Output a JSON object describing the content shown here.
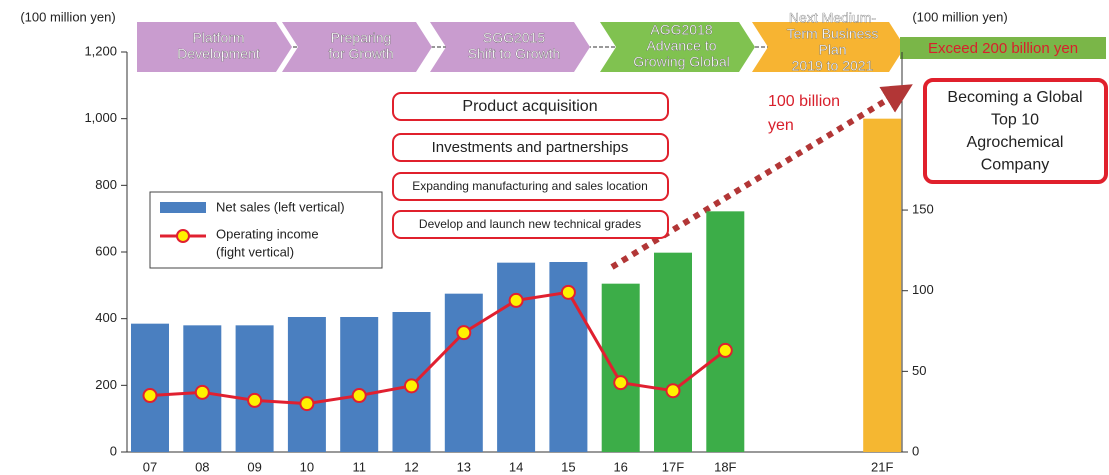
{
  "chart_data": {
    "type": "bar",
    "categories": [
      "07",
      "08",
      "09",
      "10",
      "11",
      "12",
      "13",
      "14",
      "15",
      "16",
      "17F",
      "18F",
      null,
      null,
      "21F"
    ],
    "series": [
      {
        "name": "Net sales (left vertical)",
        "type": "bar",
        "color": "#4a7fc0",
        "colors": [
          "#4a7fc0",
          "#4a7fc0",
          "#4a7fc0",
          "#4a7fc0",
          "#4a7fc0",
          "#4a7fc0",
          "#4a7fc0",
          "#4a7fc0",
          "#4a7fc0",
          "#3cad48",
          "#3cad48",
          "#3cad48",
          null,
          null,
          "#f5b731"
        ],
        "values": [
          385,
          380,
          380,
          405,
          405,
          420,
          475,
          568,
          570,
          505,
          598,
          722,
          null,
          null,
          1000
        ]
      },
      {
        "name": [
          "Operating income",
          "(fight vertical)"
        ],
        "type": "line",
        "axis": "y2",
        "color": "#e02030",
        "marker_color": "#fff200",
        "values": [
          35,
          37,
          32,
          30,
          35,
          41,
          74,
          94,
          99,
          43,
          38,
          63,
          null,
          null,
          null
        ]
      }
    ],
    "ylim": [
      0,
      1200
    ],
    "yticks": [
      0,
      200,
      400,
      600,
      800,
      {
        "value": 1000,
        "label": "1,000"
      },
      {
        "value": 1200,
        "label": "1,200"
      }
    ],
    "y2lim": [
      0,
      248
    ],
    "y2ticks": [
      0,
      50,
      100,
      150
    ],
    "ylabel": "(100 million yen)",
    "y2label": "(100 million yen)",
    "phases": [
      {
        "lines": [
          "Platform",
          "Development"
        ],
        "color": "#c99ccf"
      },
      {
        "lines": [
          "Preparing",
          "for Growth"
        ],
        "color": "#c99ccf"
      },
      {
        "lines": [
          "SGG2015",
          "Shift to Growth"
        ],
        "color": "#c99ccf"
      },
      {
        "lines": [
          "AGG2018",
          "Advance to",
          "Growing Global"
        ],
        "color": "#80c250"
      },
      {
        "lines": [
          "Next Medium-",
          "Term Business",
          "Plan",
          "2019 to 2021"
        ],
        "color": "#f7b432"
      }
    ],
    "target": "Exceed 200 billion yen",
    "milestone": [
      "100 billion",
      "yen"
    ],
    "strategies": [
      "Product acquisition",
      "Investments and partnerships",
      "Expanding manufacturing and sales location",
      "Develop and launch new technical grades"
    ],
    "goal": [
      "Becoming a Global",
      "Top 10",
      "Agrochemical",
      "Company"
    ]
  }
}
